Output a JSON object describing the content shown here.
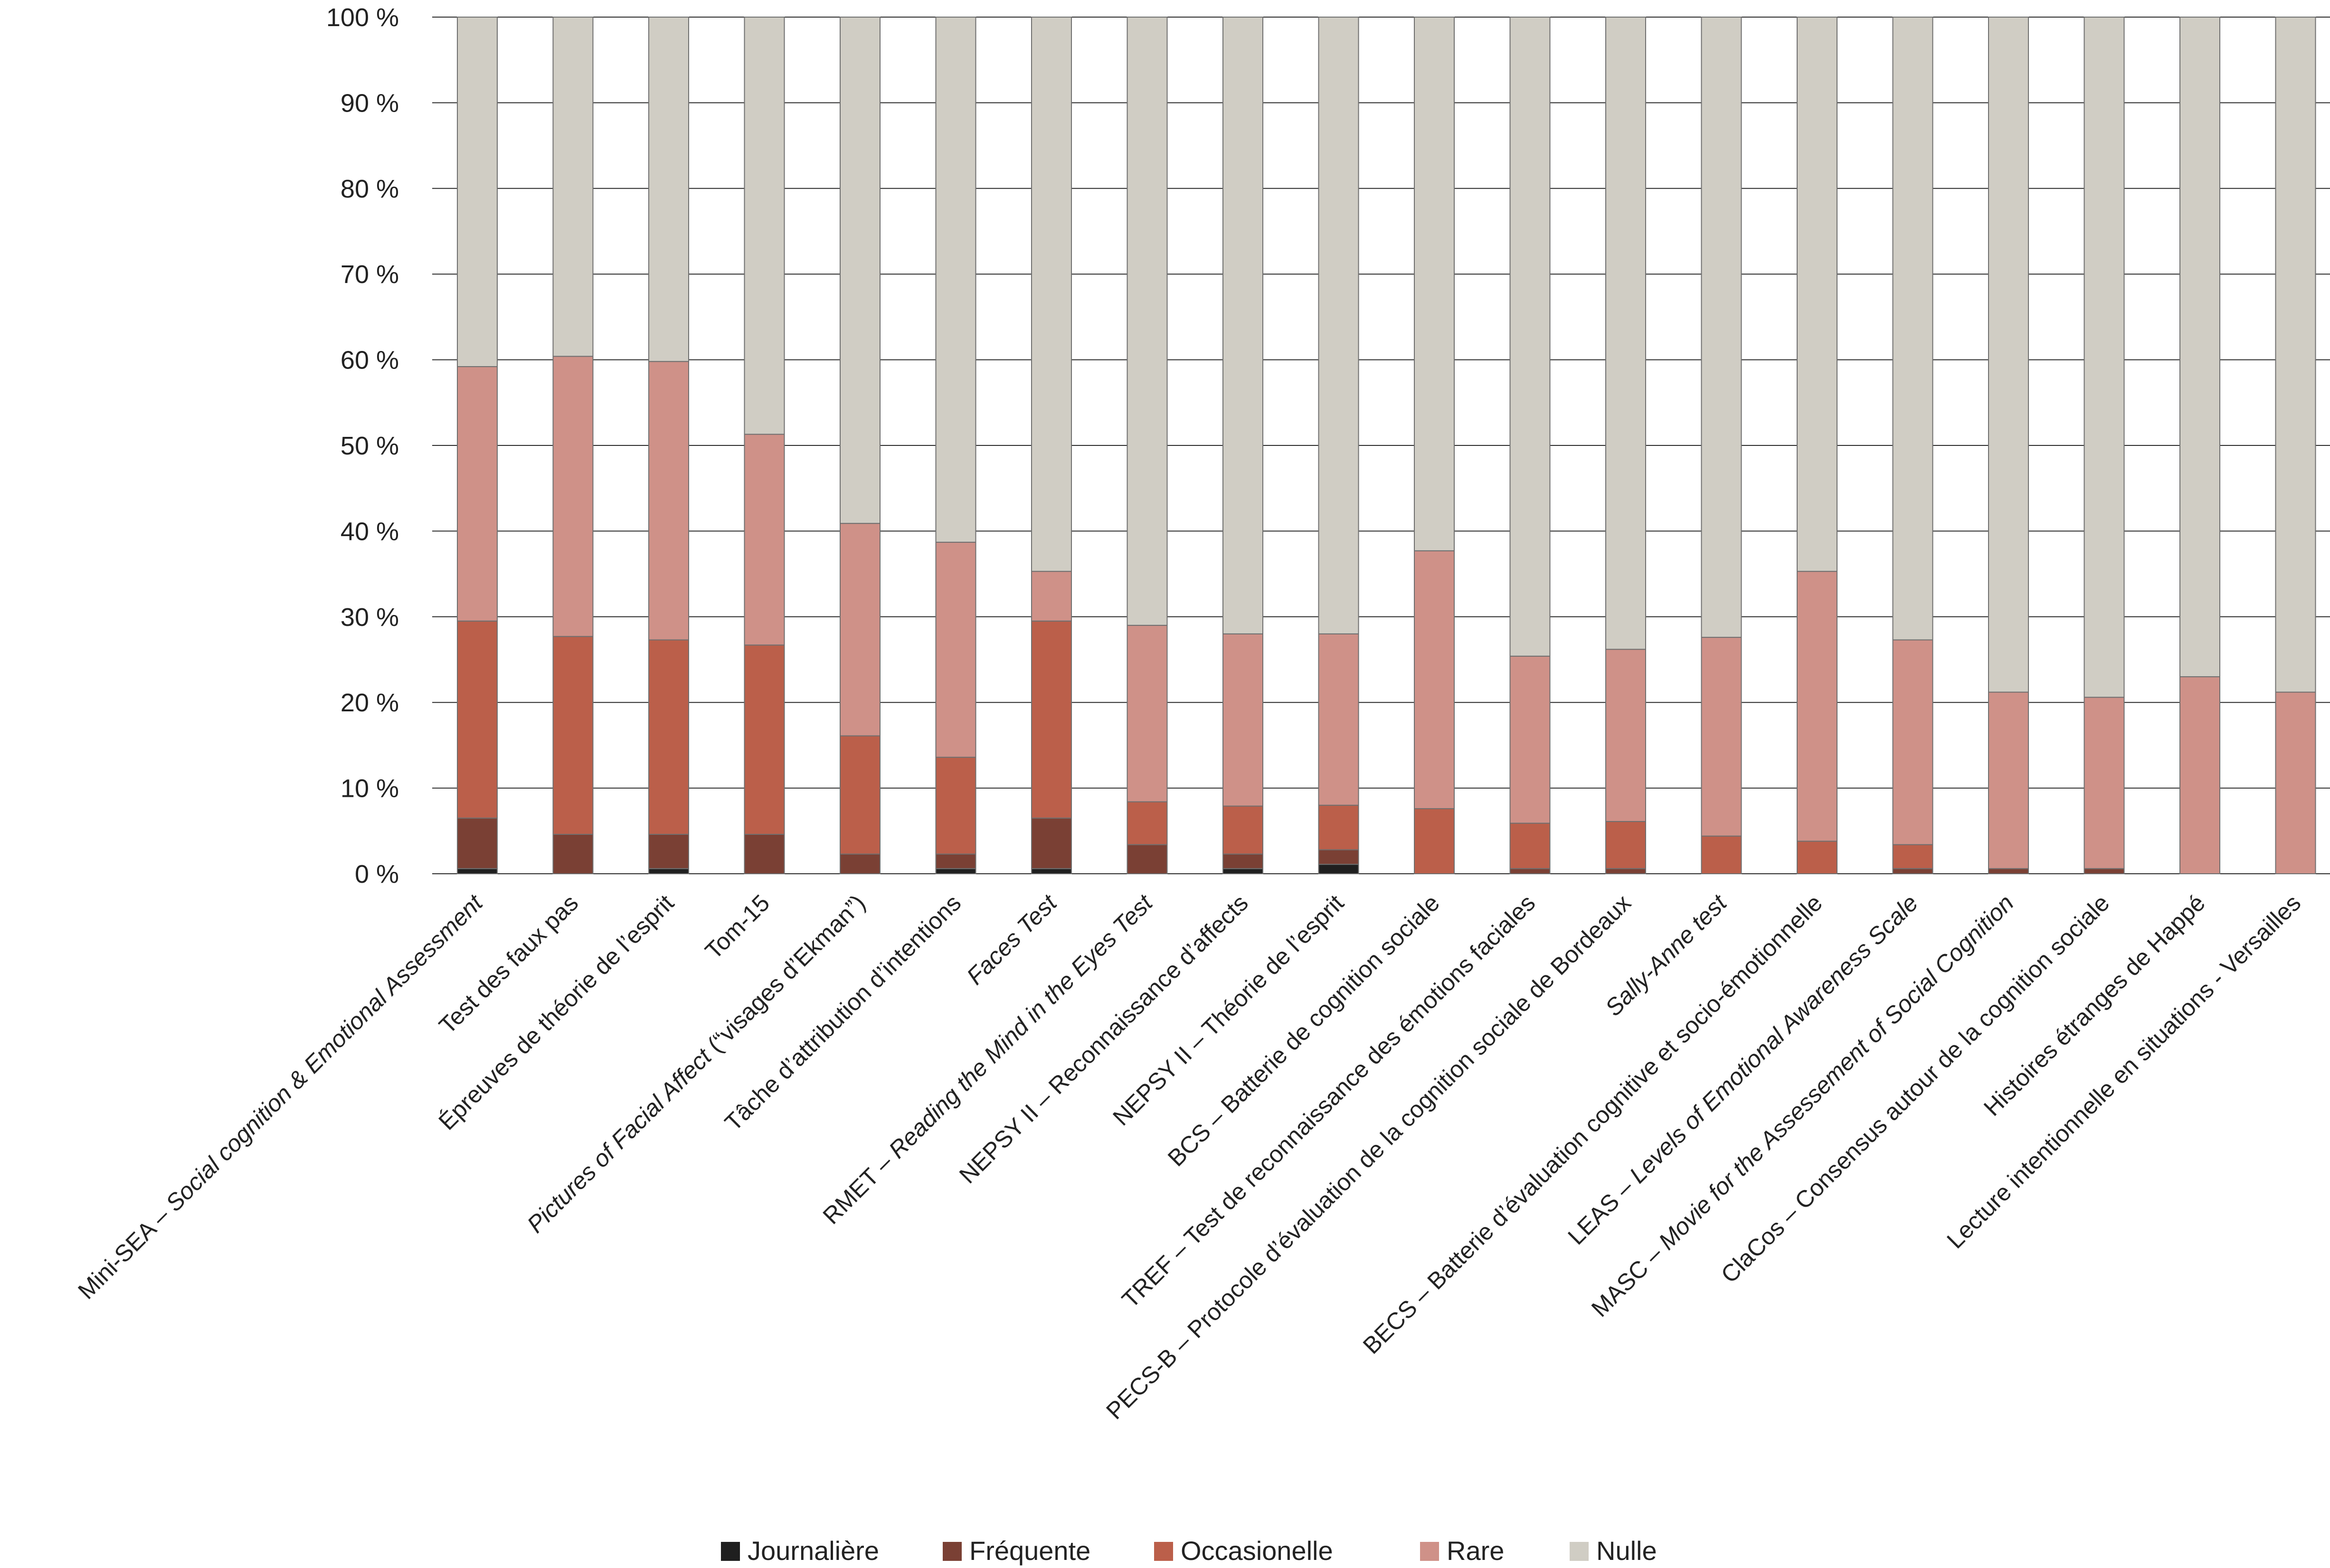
{
  "chart_data": {
    "type": "bar",
    "stacked": true,
    "ylim": [
      0,
      100
    ],
    "yticks": [
      "0 %",
      "10 %",
      "20 %",
      "30 %",
      "40 %",
      "50 %",
      "60 %",
      "70 %",
      "80 %",
      "90 %",
      "100 %"
    ],
    "grid": "horizontal",
    "legend_position": "bottom",
    "categories": [
      {
        "parts": [
          {
            "t": "Mini-SEA – ",
            "i": false
          },
          {
            "t": "Social cognition & Emotional Assessment",
            "i": true
          }
        ]
      },
      {
        "parts": [
          {
            "t": "Test des faux pas",
            "i": false
          }
        ]
      },
      {
        "parts": [
          {
            "t": "Épreuves de théorie de l’esprit",
            "i": false
          }
        ]
      },
      {
        "parts": [
          {
            "t": "Tom-15",
            "i": false
          }
        ]
      },
      {
        "parts": [
          {
            "t": "Pictures of Facial Affect",
            "i": true
          },
          {
            "t": " (“visages d’Ekman”)",
            "i": false
          }
        ]
      },
      {
        "parts": [
          {
            "t": "Tâche d’attribution d’intentions",
            "i": false
          }
        ]
      },
      {
        "parts": [
          {
            "t": "Faces Test",
            "i": true
          }
        ]
      },
      {
        "parts": [
          {
            "t": "RMET – ",
            "i": false
          },
          {
            "t": "Reading the Mind in the Eyes Test",
            "i": true
          }
        ]
      },
      {
        "parts": [
          {
            "t": "NEPSY II – Reconnaissance d’affects",
            "i": false
          }
        ]
      },
      {
        "parts": [
          {
            "t": "NEPSY II – Théorie de l’esprit",
            "i": false
          }
        ]
      },
      {
        "parts": [
          {
            "t": "BCS – Batterie de cognition sociale",
            "i": false
          }
        ]
      },
      {
        "parts": [
          {
            "t": "TREF – Test de reconnaissance des émotions faciales",
            "i": false
          }
        ]
      },
      {
        "parts": [
          {
            "t": "PECS-B – Protocole d’évaluation de la cognition sociale de Bordeaux",
            "i": false
          }
        ]
      },
      {
        "parts": [
          {
            "t": "Sally-Anne test",
            "i": true
          }
        ]
      },
      {
        "parts": [
          {
            "t": "BECS – Batterie d’évaluation cognitive et socio-émotionnelle",
            "i": false
          }
        ]
      },
      {
        "parts": [
          {
            "t": "LEAS – ",
            "i": false
          },
          {
            "t": "Levels of Emotional Awareness Scale",
            "i": true
          }
        ]
      },
      {
        "parts": [
          {
            "t": "MASC – ",
            "i": false
          },
          {
            "t": "Movie for the Assessement of Social Cognition",
            "i": true
          }
        ]
      },
      {
        "parts": [
          {
            "t": "ClaCos – Consensus autour de la cognition sociale",
            "i": false
          }
        ]
      },
      {
        "parts": [
          {
            "t": "Histoires étranges de Happé",
            "i": false
          }
        ]
      },
      {
        "parts": [
          {
            "t": "Lecture intentionnelle en situations - Versailles",
            "i": false
          }
        ]
      }
    ],
    "series": [
      {
        "name": "Journalière",
        "color": "#1f1f1f",
        "values": [
          0.6,
          0,
          0.6,
          0,
          0,
          0.6,
          0.6,
          0,
          0.6,
          1.1,
          0,
          0,
          0,
          0,
          0,
          0,
          0,
          0,
          0,
          0
        ]
      },
      {
        "name": "Fréquente",
        "color": "#7a4034",
        "values": [
          5.9,
          4.6,
          4.0,
          4.6,
          2.3,
          1.7,
          5.9,
          3.4,
          1.7,
          1.7,
          0,
          0.6,
          0.6,
          0,
          0,
          0.6,
          0.6,
          0.6,
          0,
          0
        ]
      },
      {
        "name": "Occasionelle",
        "color": "#bb5f4a",
        "values": [
          23.0,
          23.1,
          22.7,
          22.1,
          13.8,
          11.3,
          23.0,
          5.0,
          5.6,
          5.2,
          7.6,
          5.3,
          5.5,
          4.4,
          3.8,
          2.8,
          0,
          0,
          0,
          0
        ]
      },
      {
        "name": "Rare",
        "color": "#cf9188",
        "values": [
          29.7,
          32.7,
          32.5,
          24.6,
          24.8,
          25.1,
          5.8,
          20.6,
          20.1,
          20.0,
          30.1,
          19.5,
          20.1,
          23.2,
          31.5,
          23.9,
          20.6,
          20.0,
          23.0,
          21.2
        ]
      },
      {
        "name": "Nulle",
        "color": "#d0cdc4",
        "values": [
          40.8,
          39.6,
          40.2,
          48.7,
          59.1,
          61.3,
          64.7,
          71.0,
          72.0,
          72.0,
          62.3,
          74.6,
          73.8,
          72.4,
          64.7,
          72.7,
          78.8,
          79.4,
          77.0,
          78.8
        ]
      }
    ]
  }
}
